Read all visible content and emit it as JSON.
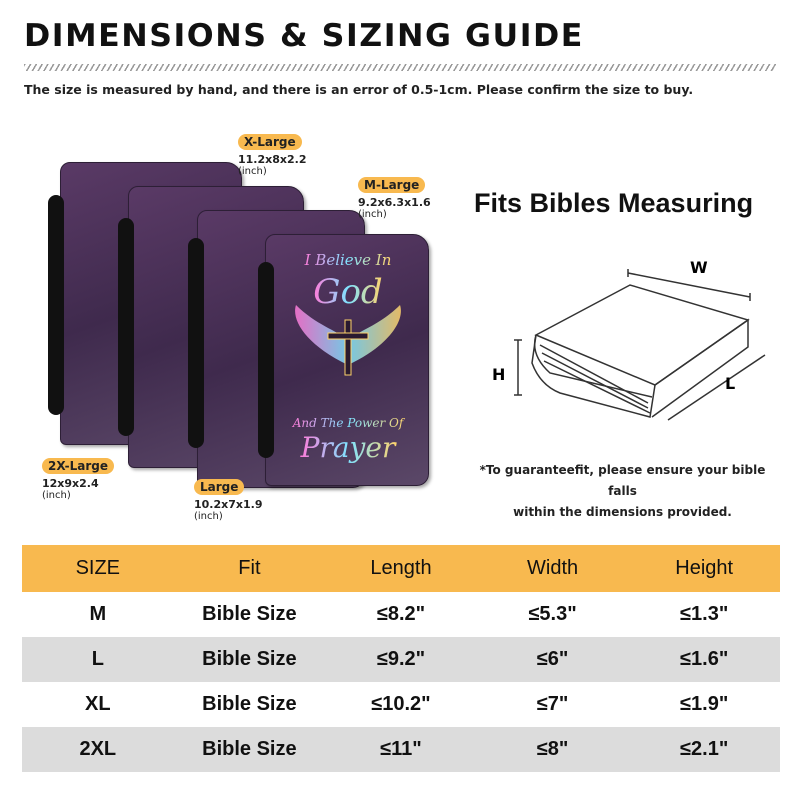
{
  "title": "DIMENSIONS & SIZING GUIDE",
  "subtitle": "The size is measured by hand, and there is an error of 0.5-1cm. Please confirm the size to buy.",
  "sizes": [
    {
      "tag": "X-Large",
      "dims": "11.2x8x2.2",
      "unit": "(inch)"
    },
    {
      "tag": "M-Large",
      "dims": "9.2x6.3x1.6",
      "unit": "(inch)"
    },
    {
      "tag": "2X-Large",
      "dims": "12x9x2.4",
      "unit": "(inch)"
    },
    {
      "tag": "Large",
      "dims": "10.2x7x1.9",
      "unit": "(inch)"
    }
  ],
  "cover_art": {
    "line1": "I Believe In",
    "line2": "God",
    "line3": "And The Power Of",
    "line4": "Prayer"
  },
  "fits_title": "Fits Bibles Measuring",
  "diagram_labels": {
    "w": "W",
    "h": "H",
    "l": "L"
  },
  "note": [
    "*To guaranteefit, please ensure your bible falls",
    "within the dimensions provided."
  ],
  "colors": {
    "accent": "#f8b94f",
    "row_alt": "#dcdcdc",
    "cover": "#4a3357"
  },
  "table": {
    "headers": [
      "SIZE",
      "Fit",
      "Length",
      "Width",
      "Height"
    ],
    "rows": [
      [
        "M",
        "Bible Size",
        "≤8.2\"",
        "≤5.3\"",
        "≤1.3\""
      ],
      [
        "L",
        "Bible Size",
        "≤9.2\"",
        "≤6\"",
        "≤1.6\""
      ],
      [
        "XL",
        "Bible Size",
        "≤10.2\"",
        "≤7\"",
        "≤1.9\""
      ],
      [
        "2XL",
        "Bible Size",
        "≤11\"",
        "≤8\"",
        "≤2.1\""
      ]
    ]
  }
}
